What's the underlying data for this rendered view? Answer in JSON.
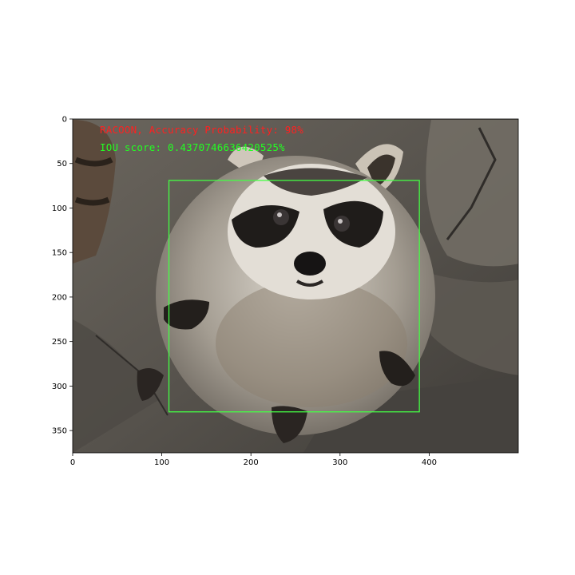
{
  "chart_data": {
    "type": "image",
    "image_size": [
      500,
      375
    ],
    "xlim": [
      0,
      500
    ],
    "ylim": [
      375,
      0
    ],
    "xticks": [
      0,
      100,
      200,
      300,
      400
    ],
    "yticks": [
      0,
      50,
      100,
      150,
      200,
      250,
      300,
      350
    ],
    "grid": false,
    "bounding_box": {
      "x_min": 108,
      "y_min": 69,
      "x_max": 389,
      "y_max": 329,
      "color": "#44ff44"
    },
    "annotations": [
      {
        "text": "RACOON, Accuracy Probability: 98%",
        "color": "#ff2020"
      },
      {
        "text": "IOU score: 0.4370746636420525%",
        "color": "#22ff22"
      }
    ]
  }
}
